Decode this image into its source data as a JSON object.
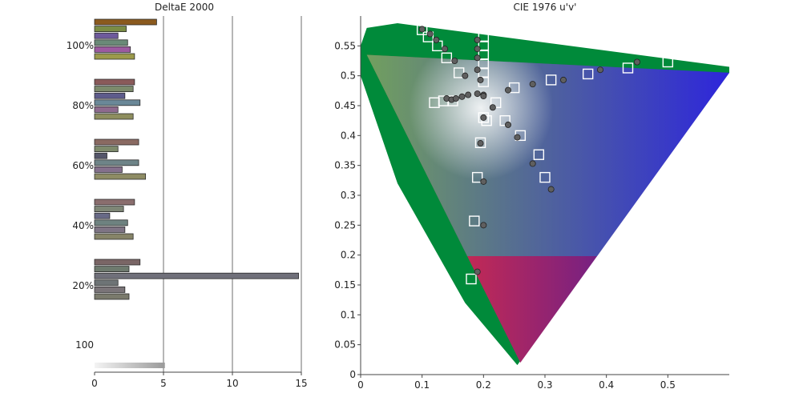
{
  "chart_data": [
    {
      "type": "bar",
      "title": "DeltaE 2000",
      "orientation": "horizontal",
      "xlim": [
        0,
        15
      ],
      "x_ticks": [
        0,
        5,
        10,
        15
      ],
      "grid_lines": [
        5,
        10,
        15
      ],
      "groups": [
        {
          "label": "100%",
          "values": [
            4.5,
            2.3,
            1.7,
            2.4,
            2.6,
            2.9
          ],
          "colors": [
            "#8b5a1e",
            "#7a8c45",
            "#6e5a9c",
            "#6a8a78",
            "#9c5aa0",
            "#9c9a4a"
          ]
        },
        {
          "label": "80%",
          "values": [
            2.9,
            2.8,
            2.2,
            3.3,
            1.7,
            2.8
          ],
          "colors": [
            "#8a5a5a",
            "#7c8a6c",
            "#5e5c8c",
            "#6a8898",
            "#8e6a8e",
            "#8e8e5e"
          ]
        },
        {
          "label": "60%",
          "values": [
            3.2,
            1.7,
            0.9,
            3.2,
            2.0,
            3.7
          ],
          "colors": [
            "#8a6a62",
            "#7e8a6c",
            "#55566a",
            "#6e8488",
            "#84708c",
            "#8e8c64"
          ]
        },
        {
          "label": "40%",
          "values": [
            2.9,
            2.1,
            1.1,
            2.4,
            2.2,
            2.8
          ],
          "colors": [
            "#8a6e6e",
            "#7e8676",
            "#686a86",
            "#6e8280",
            "#7e7484",
            "#868468"
          ]
        },
        {
          "label": "20%",
          "values": [
            3.3,
            2.5,
            14.8,
            1.7,
            2.2,
            2.5
          ],
          "colors": [
            "#7a6666",
            "#6e7a6e",
            "#70707a",
            "#6e7476",
            "#7a7478",
            "#7a7a6c"
          ]
        }
      ],
      "single_bar": {
        "label": "100",
        "value": 5.1,
        "color": "#9a9a9a"
      }
    },
    {
      "type": "scatter",
      "title": "CIE 1976 u'v'",
      "xlim": [
        0,
        0.6
      ],
      "ylim": [
        0,
        0.6
      ],
      "x_ticks": [
        0,
        0.1,
        0.2,
        0.3,
        0.4,
        0.5
      ],
      "y_ticks": [
        0,
        0.05,
        0.1,
        0.15,
        0.2,
        0.25,
        0.3,
        0.35,
        0.4,
        0.45,
        0.5,
        0.55
      ],
      "gamut_vertices": [
        [
          0.01,
          0.535
        ],
        [
          0.6,
          0.505
        ],
        [
          0.26,
          0.02
        ]
      ],
      "targets": [
        [
          0.1,
          0.577
        ],
        [
          0.11,
          0.565
        ],
        [
          0.125,
          0.55
        ],
        [
          0.14,
          0.53
        ],
        [
          0.16,
          0.505
        ],
        [
          0.2,
          0.565
        ],
        [
          0.2,
          0.55
        ],
        [
          0.2,
          0.535
        ],
        [
          0.2,
          0.52
        ],
        [
          0.2,
          0.505
        ],
        [
          0.2,
          0.49
        ],
        [
          0.12,
          0.455
        ],
        [
          0.135,
          0.458
        ],
        [
          0.15,
          0.458
        ],
        [
          0.22,
          0.455
        ],
        [
          0.2,
          0.43
        ],
        [
          0.205,
          0.425
        ],
        [
          0.235,
          0.425
        ],
        [
          0.26,
          0.4
        ],
        [
          0.195,
          0.388
        ],
        [
          0.29,
          0.368
        ],
        [
          0.3,
          0.33
        ],
        [
          0.19,
          0.33
        ],
        [
          0.185,
          0.257
        ],
        [
          0.18,
          0.16
        ],
        [
          0.25,
          0.48
        ],
        [
          0.31,
          0.493
        ],
        [
          0.37,
          0.503
        ],
        [
          0.435,
          0.513
        ],
        [
          0.5,
          0.523
        ]
      ],
      "measured": [
        [
          0.1,
          0.578
        ],
        [
          0.113,
          0.57
        ],
        [
          0.123,
          0.56
        ],
        [
          0.137,
          0.545
        ],
        [
          0.153,
          0.525
        ],
        [
          0.17,
          0.5
        ],
        [
          0.19,
          0.56
        ],
        [
          0.19,
          0.545
        ],
        [
          0.19,
          0.53
        ],
        [
          0.19,
          0.51
        ],
        [
          0.195,
          0.493
        ],
        [
          0.14,
          0.462
        ],
        [
          0.148,
          0.46
        ],
        [
          0.155,
          0.462
        ],
        [
          0.165,
          0.465
        ],
        [
          0.175,
          0.468
        ],
        [
          0.19,
          0.47
        ],
        [
          0.2,
          0.468
        ],
        [
          0.215,
          0.447
        ],
        [
          0.2,
          0.43
        ],
        [
          0.24,
          0.418
        ],
        [
          0.255,
          0.397
        ],
        [
          0.195,
          0.387
        ],
        [
          0.28,
          0.353
        ],
        [
          0.2,
          0.323
        ],
        [
          0.31,
          0.31
        ],
        [
          0.2,
          0.25
        ],
        [
          0.19,
          0.172
        ],
        [
          0.24,
          0.476
        ],
        [
          0.28,
          0.486
        ],
        [
          0.33,
          0.493
        ],
        [
          0.39,
          0.51
        ],
        [
          0.45,
          0.523
        ],
        [
          0.2,
          0.466
        ]
      ]
    }
  ]
}
